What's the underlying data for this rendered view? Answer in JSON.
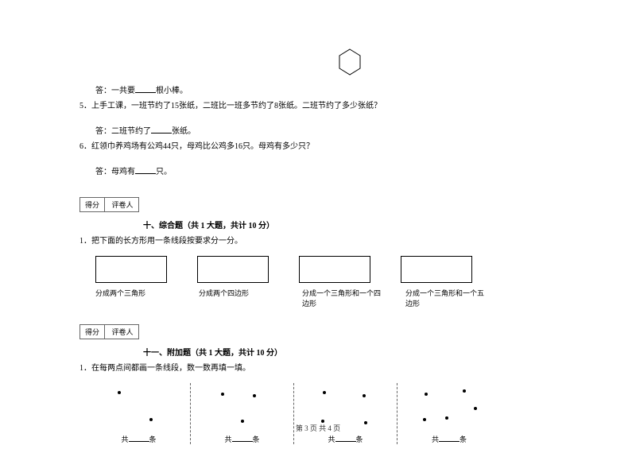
{
  "hexagon": {
    "stroke": "#000000",
    "size": 36
  },
  "q4_answer": "答：一共要",
  "q4_suffix": "根小棒。",
  "q5": "5．上手工课，一班节约了15张纸，二班比一班多节约了8张纸。二班节约了多少张纸？",
  "q5_answer": "答：二班节约了",
  "q5_suffix": "张纸。",
  "q6": "6．红领巾养鸡场有公鸡44只，母鸡比公鸡多16只。母鸡有多少只？",
  "q6_answer": "答：母鸡有",
  "q6_suffix": "只。",
  "score_label1": "得分",
  "score_label2": "评卷人",
  "section10_title": "十、综合题（共 1 大题，共计 10 分）",
  "s10_q1": "1．把下面的长方形用一条线段按要求分一分。",
  "rect_labels": [
    "分成两个三角形",
    "分成两个四边形",
    "分成一个三角形和一个四边形",
    "分成一个三角形和一个五边形"
  ],
  "section11_title": "十一、附加题（共 1 大题，共计 10 分）",
  "s11_q1": "1．在每两点间都画一条线段，数一数再填一填。",
  "dots": {
    "panel1": [
      [
        30,
        10
      ],
      [
        70,
        44
      ]
    ],
    "panel2": [
      [
        30,
        12
      ],
      [
        70,
        14
      ],
      [
        55,
        46
      ]
    ],
    "panel3": [
      [
        28,
        10
      ],
      [
        78,
        14
      ],
      [
        26,
        46
      ],
      [
        80,
        48
      ]
    ],
    "panel4": [
      [
        26,
        12
      ],
      [
        74,
        8
      ],
      [
        88,
        30
      ],
      [
        52,
        42
      ],
      [
        24,
        44
      ]
    ]
  },
  "dots_prefix": "共",
  "dots_suffix": "条",
  "footer": "第 3 页 共 4 页"
}
